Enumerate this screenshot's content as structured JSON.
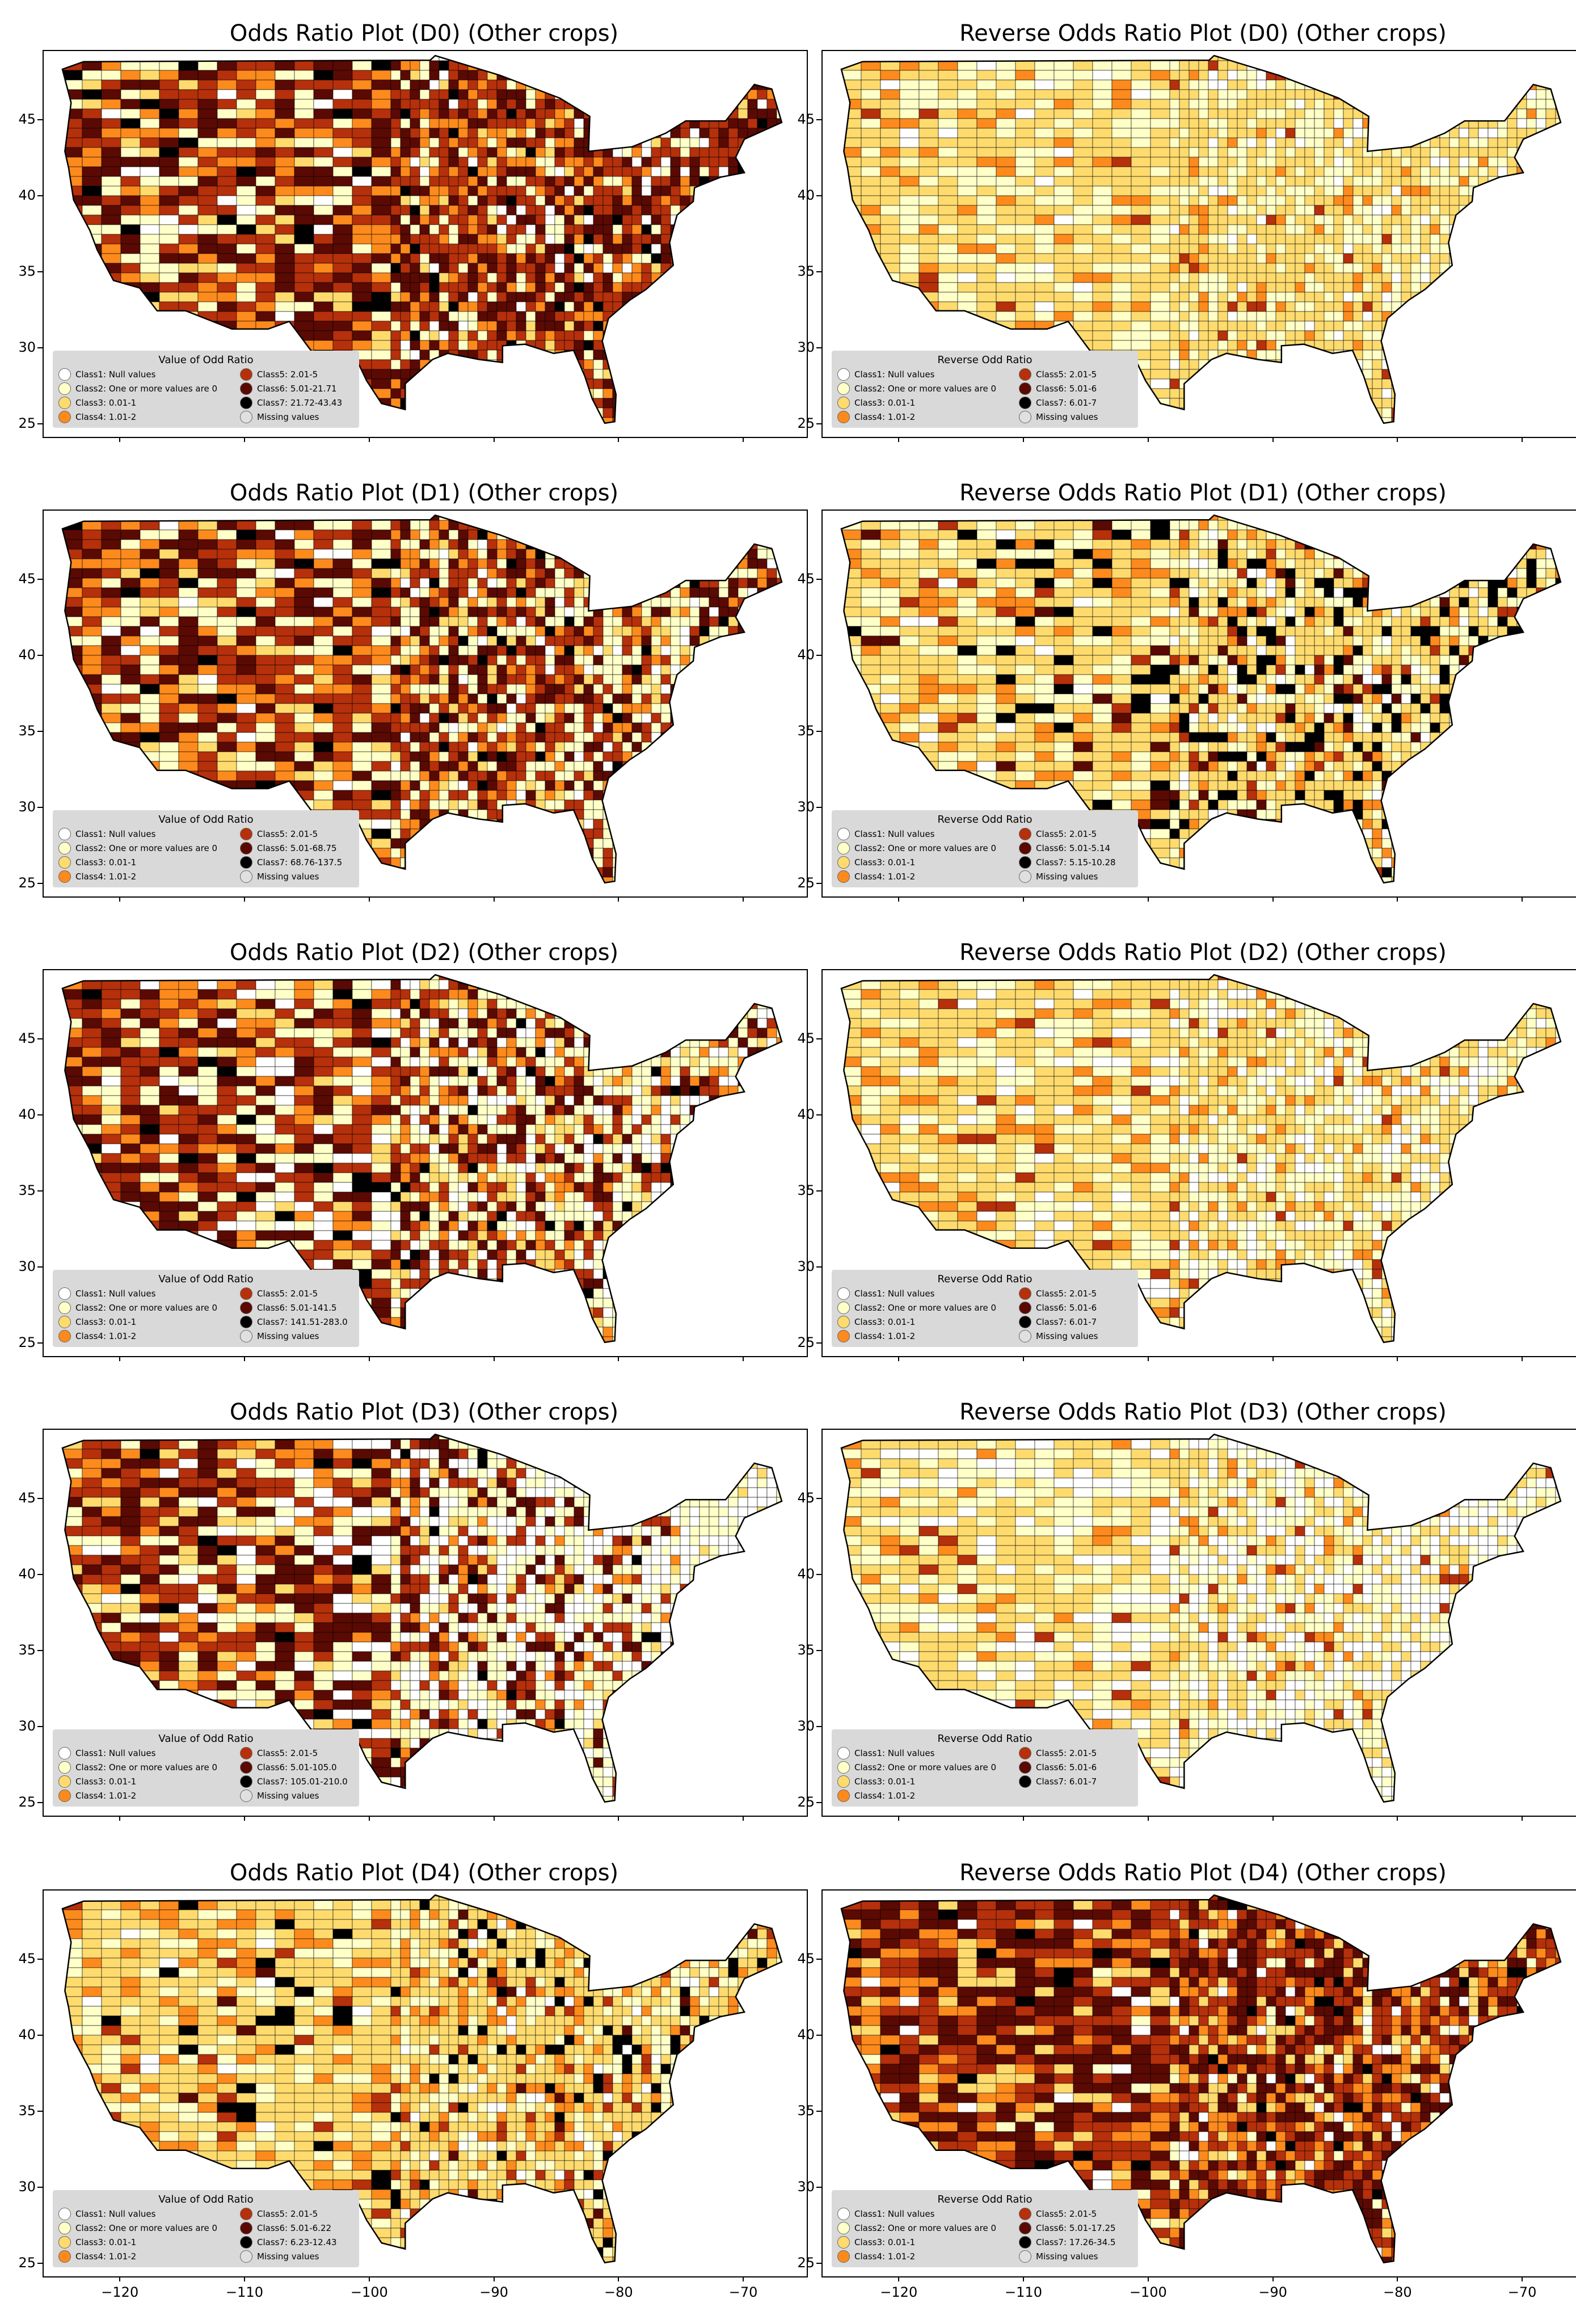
{
  "panels": [
    {
      "title": "Odds Ratio Plot (D0) (Other crops)",
      "legend_title": "Value of Odd Ratio",
      "classes_left": [
        "Class1: Null values",
        "Class2: One or more values are 0",
        "Class3: 0.01-1",
        "Class4: 1.01-2"
      ],
      "classes_right": [
        "Class5: 2.01-5",
        "Class6: 5.01-21.71",
        "Class7: 21.72-43.43",
        "Missing values"
      ]
    },
    {
      "title": "Reverse Odds Ratio Plot (D0) (Other crops)",
      "legend_title": "Reverse Odd Ratio",
      "classes_left": [
        "Class1: Null values",
        "Class2: One or more values are 0",
        "Class3: 0.01-1",
        "Class4: 1.01-2"
      ],
      "classes_right": [
        "Class5: 2.01-5",
        "Class6: 5.01-6",
        "Class7: 6.01-7",
        "Missing values"
      ]
    },
    {
      "title": "Odds Ratio Plot (D1) (Other crops)",
      "legend_title": "Value of Odd Ratio",
      "classes_left": [
        "Class1: Null values",
        "Class2: One or more values are 0",
        "Class3: 0.01-1",
        "Class4: 1.01-2"
      ],
      "classes_right": [
        "Class5: 2.01-5",
        "Class6: 5.01-68.75",
        "Class7: 68.76-137.5",
        "Missing values"
      ]
    },
    {
      "title": "Reverse Odds Ratio Plot (D1) (Other crops)",
      "legend_title": "Reverse Odd Ratio",
      "classes_left": [
        "Class1: Null values",
        "Class2: One or more values are 0",
        "Class3: 0.01-1",
        "Class4: 1.01-2"
      ],
      "classes_right": [
        "Class5: 2.01-5",
        "Class6: 5.01-5.14",
        "Class7: 5.15-10.28",
        "Missing values"
      ]
    },
    {
      "title": "Odds Ratio Plot (D2) (Other crops)",
      "legend_title": "Value of Odd Ratio",
      "classes_left": [
        "Class1: Null values",
        "Class2: One or more values are 0",
        "Class3: 0.01-1",
        "Class4: 1.01-2"
      ],
      "classes_right": [
        "Class5: 2.01-5",
        "Class6: 5.01-141.5",
        "Class7: 141.51-283.0",
        "Missing values"
      ]
    },
    {
      "title": "Reverse Odds Ratio Plot (D2) (Other crops)",
      "legend_title": "Reverse Odd Ratio",
      "classes_left": [
        "Class1: Null values",
        "Class2: One or more values are 0",
        "Class3: 0.01-1",
        "Class4: 1.01-2"
      ],
      "classes_right": [
        "Class5: 2.01-5",
        "Class6: 5.01-6",
        "Class7: 6.01-7",
        "Missing values"
      ]
    },
    {
      "title": "Odds Ratio Plot (D3) (Other crops)",
      "legend_title": "Value of Odd Ratio",
      "classes_left": [
        "Class1: Null values",
        "Class2: One or more values are 0",
        "Class3: 0.01-1",
        "Class4: 1.01-2"
      ],
      "classes_right": [
        "Class5: 2.01-5",
        "Class6: 5.01-105.0",
        "Class7: 105.01-210.0",
        "Missing values"
      ]
    },
    {
      "title": "Reverse Odds Ratio Plot (D3) (Other crops)",
      "legend_title": "Reverse Odd Ratio",
      "classes_left": [
        "Class1: Null values",
        "Class2: One or more values are 0",
        "Class3: 0.01-1",
        "Class4: 1.01-2"
      ],
      "classes_right": [
        "Class5: 2.01-5",
        "Class6: 5.01-6",
        "Class7: 6.01-7"
      ]
    },
    {
      "title": "Odds Ratio Plot (D4) (Other crops)",
      "legend_title": "Value of Odd Ratio",
      "classes_left": [
        "Class1: Null values",
        "Class2: One or more values are 0",
        "Class3: 0.01-1",
        "Class4: 1.01-2"
      ],
      "classes_right": [
        "Class5: 2.01-5",
        "Class6: 5.01-6.22",
        "Class7: 6.23-12.43",
        "Missing values"
      ]
    },
    {
      "title": "Reverse Odds Ratio Plot (D4) (Other crops)",
      "legend_title": "Reverse Odd Ratio",
      "classes_left": [
        "Class1: Null values",
        "Class2: One or more values are 0",
        "Class3: 0.01-1",
        "Class4: 1.01-2"
      ],
      "classes_right": [
        "Class5: 2.01-5",
        "Class6: 5.01-17.25",
        "Class7: 17.26-34.5",
        "Missing values"
      ]
    }
  ],
  "class_colors": [
    "#ffffff",
    "#ffffc8",
    "#ffdb6e",
    "#fd8a1c",
    "#b5300b",
    "#5a0a03",
    "#000000",
    "#e0e0e0"
  ],
  "y_ticks": [
    "45",
    "40",
    "35",
    "30",
    "25"
  ],
  "x_ticks": [
    "−120",
    "−110",
    "−100",
    "−90",
    "−80",
    "−70"
  ]
}
